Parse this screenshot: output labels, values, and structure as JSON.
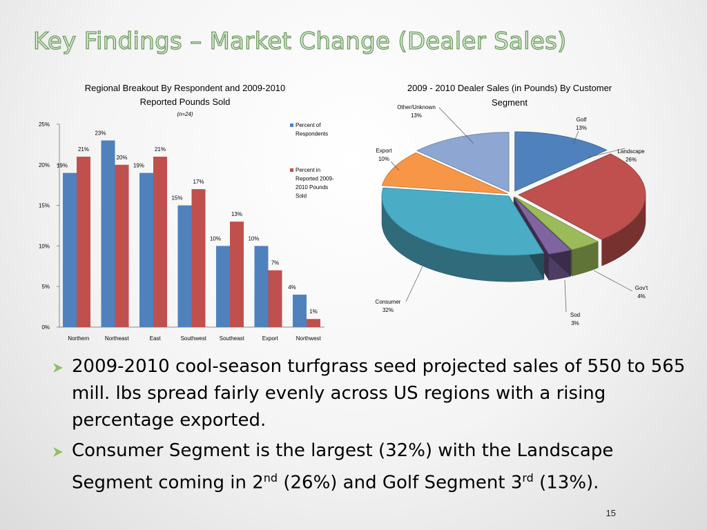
{
  "slide": {
    "title": "Key Findings – Market Change (Dealer Sales)",
    "page_number": "15",
    "bullets": [
      {
        "parts": [
          {
            "text": "2009-2010 cool-season turfgrass seed projected sales of 550 to 565 mill. lbs spread fairly evenly across US regions with a rising percentage exported."
          }
        ]
      },
      {
        "parts": [
          {
            "text": "Consumer Segment is the largest (32%) with the Landscape Segment coming in 2"
          },
          {
            "text": "nd",
            "sup": true
          },
          {
            "text": " (26%) and Golf Segment 3"
          },
          {
            "text": "rd",
            "sup": true
          },
          {
            "text": " (13%)."
          }
        ]
      }
    ],
    "colors": {
      "title_fill": "#d6ead0",
      "title_outline": "#6f9b62",
      "bullet_arrow": "#8fbf6a"
    }
  },
  "chart_data": [
    {
      "type": "bar",
      "title": "Regional Breakout By Respondent and 2009-2010",
      "title_line2": "Reported Pounds Sold",
      "subtitle": "(n=24)",
      "categories": [
        "Northern",
        "Northeast",
        "East",
        "Southwest",
        "Southeast",
        "Export",
        "Northwest"
      ],
      "series": [
        {
          "name": "Percent of Respondents",
          "values": [
            19,
            23,
            19,
            15,
            10,
            10,
            4
          ],
          "color": "#4f81bd"
        },
        {
          "name": "Percent in Reported 2009-2010 Pounds Sold",
          "values": [
            21,
            20,
            21,
            17,
            13,
            7,
            1
          ],
          "color": "#c0504d"
        }
      ],
      "ylim": [
        0,
        25
      ],
      "yticks": [
        "0%",
        "5%",
        "10%",
        "15%",
        "20%",
        "25%"
      ],
      "value_suffix": "%",
      "grid": false,
      "legend_position": "right"
    },
    {
      "type": "pie",
      "style": "3d-exploded",
      "title": "2009 - 2010 Dealer Sales (in Pounds) By Customer",
      "title_line2": "Segment",
      "slices": [
        {
          "label": "Golf",
          "value": 13,
          "color": "#4f81bd"
        },
        {
          "label": "Landscape",
          "value": 26,
          "color": "#c0504d"
        },
        {
          "label": "Gov't",
          "value": 4,
          "color": "#9bbb59"
        },
        {
          "label": "Sod",
          "value": 3,
          "color": "#8064a2"
        },
        {
          "label": "Consumer",
          "value": 32,
          "color": "#4bacc6"
        },
        {
          "label": "Export",
          "value": 10,
          "color": "#f79646"
        },
        {
          "label": "Other/Unknown",
          "value": 13,
          "color": "#8ea6d2"
        }
      ],
      "value_suffix": "%"
    }
  ]
}
